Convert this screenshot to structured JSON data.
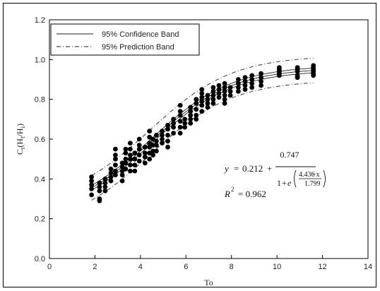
{
  "chart_data": {
    "type": "scatter",
    "xlabel": "To",
    "ylabel_main": "C",
    "ylabel_sub": "t",
    "ylabel_paren": "(H",
    "ylabel_paren_sub": "t",
    "ylabel_slash": "/H",
    "ylabel_slash_sub": "i",
    "ylabel_close": ")",
    "xlim": [
      0,
      14
    ],
    "ylim": [
      0.0,
      1.2
    ],
    "xticks": [
      "0",
      "2",
      "4",
      "6",
      "8",
      "10",
      "12",
      "14"
    ],
    "yticks": [
      "0.0",
      "0.2",
      "0.4",
      "0.6",
      "0.8",
      "1.0",
      "1.2"
    ],
    "legend": {
      "position": "top-left",
      "entries": [
        "95% Confidence Band",
        "95% Prediction Band"
      ]
    },
    "equation": {
      "lhs": "y",
      "a": "0.212",
      "b": "0.747",
      "c": "4.436",
      "d": "1.799",
      "one": "1",
      "e": "e",
      "minus_x": "−x",
      "plus": "+",
      "eq": "="
    },
    "r2": {
      "label": "R",
      "exp": "2",
      "value": "= 0.962"
    },
    "model": {
      "a": 0.212,
      "b": 0.747,
      "c": 4.436,
      "d": 1.799
    },
    "confidence_halfwidth": 0.012,
    "prediction_halfwidth": 0.062,
    "points": [
      [
        1.85,
        0.41
      ],
      [
        1.85,
        0.39
      ],
      [
        1.85,
        0.37
      ],
      [
        1.85,
        0.35
      ],
      [
        1.85,
        0.32
      ],
      [
        2.2,
        0.38
      ],
      [
        2.2,
        0.36
      ],
      [
        2.2,
        0.34
      ],
      [
        2.2,
        0.3
      ],
      [
        2.2,
        0.29
      ],
      [
        2.45,
        0.4
      ],
      [
        2.45,
        0.38
      ],
      [
        2.45,
        0.36
      ],
      [
        2.45,
        0.34
      ],
      [
        2.7,
        0.45
      ],
      [
        2.7,
        0.43
      ],
      [
        2.7,
        0.41
      ],
      [
        2.7,
        0.39
      ],
      [
        2.9,
        0.55
      ],
      [
        2.9,
        0.52
      ],
      [
        2.9,
        0.5
      ],
      [
        2.9,
        0.47
      ],
      [
        2.9,
        0.44
      ],
      [
        2.9,
        0.42
      ],
      [
        3.2,
        0.48
      ],
      [
        3.2,
        0.46
      ],
      [
        3.2,
        0.44
      ],
      [
        3.2,
        0.42
      ],
      [
        3.2,
        0.39
      ],
      [
        3.35,
        0.55
      ],
      [
        3.35,
        0.53
      ],
      [
        3.35,
        0.5
      ],
      [
        3.35,
        0.48
      ],
      [
        3.35,
        0.45
      ],
      [
        3.55,
        0.58
      ],
      [
        3.55,
        0.55
      ],
      [
        3.55,
        0.52
      ],
      [
        3.55,
        0.5
      ],
      [
        3.55,
        0.47
      ],
      [
        3.55,
        0.44
      ],
      [
        3.75,
        0.53
      ],
      [
        3.75,
        0.5
      ],
      [
        3.75,
        0.47
      ],
      [
        3.75,
        0.44
      ],
      [
        3.95,
        0.6
      ],
      [
        3.95,
        0.57
      ],
      [
        3.95,
        0.55
      ],
      [
        3.95,
        0.52
      ],
      [
        3.95,
        0.49
      ],
      [
        4.2,
        0.56
      ],
      [
        4.2,
        0.53
      ],
      [
        4.2,
        0.51
      ],
      [
        4.2,
        0.48
      ],
      [
        4.4,
        0.64
      ],
      [
        4.4,
        0.61
      ],
      [
        4.4,
        0.58
      ],
      [
        4.4,
        0.56
      ],
      [
        4.4,
        0.53
      ],
      [
        4.4,
        0.5
      ],
      [
        4.55,
        0.6
      ],
      [
        4.55,
        0.57
      ],
      [
        4.55,
        0.54
      ],
      [
        4.55,
        0.52
      ],
      [
        4.7,
        0.62
      ],
      [
        4.7,
        0.59
      ],
      [
        4.7,
        0.57
      ],
      [
        4.7,
        0.54
      ],
      [
        4.95,
        0.64
      ],
      [
        4.95,
        0.62
      ],
      [
        4.95,
        0.6
      ],
      [
        4.95,
        0.58
      ],
      [
        5.2,
        0.67
      ],
      [
        5.2,
        0.65
      ],
      [
        5.2,
        0.62
      ],
      [
        5.2,
        0.59
      ],
      [
        5.2,
        0.56
      ],
      [
        5.45,
        0.7
      ],
      [
        5.45,
        0.68
      ],
      [
        5.45,
        0.66
      ],
      [
        5.45,
        0.63
      ],
      [
        5.75,
        0.77
      ],
      [
        5.75,
        0.74
      ],
      [
        5.75,
        0.72
      ],
      [
        5.75,
        0.69
      ],
      [
        5.75,
        0.66
      ],
      [
        5.75,
        0.63
      ],
      [
        5.95,
        0.7
      ],
      [
        5.95,
        0.68
      ],
      [
        5.95,
        0.66
      ],
      [
        6.2,
        0.76
      ],
      [
        6.2,
        0.74
      ],
      [
        6.2,
        0.72
      ],
      [
        6.2,
        0.7
      ],
      [
        6.2,
        0.68
      ],
      [
        6.45,
        0.8
      ],
      [
        6.45,
        0.78
      ],
      [
        6.45,
        0.75
      ],
      [
        6.45,
        0.72
      ],
      [
        6.45,
        0.7
      ],
      [
        6.7,
        0.85
      ],
      [
        6.7,
        0.83
      ],
      [
        6.7,
        0.81
      ],
      [
        6.7,
        0.79
      ],
      [
        6.7,
        0.77
      ],
      [
        6.7,
        0.74
      ],
      [
        6.95,
        0.82
      ],
      [
        6.95,
        0.8
      ],
      [
        6.95,
        0.78
      ],
      [
        6.95,
        0.76
      ],
      [
        7.2,
        0.86
      ],
      [
        7.2,
        0.84
      ],
      [
        7.2,
        0.82
      ],
      [
        7.2,
        0.8
      ],
      [
        7.2,
        0.78
      ],
      [
        7.45,
        0.87
      ],
      [
        7.45,
        0.85
      ],
      [
        7.45,
        0.83
      ],
      [
        7.45,
        0.81
      ],
      [
        7.7,
        0.88
      ],
      [
        7.7,
        0.86
      ],
      [
        7.7,
        0.84
      ],
      [
        7.7,
        0.82
      ],
      [
        7.7,
        0.8
      ],
      [
        7.7,
        0.78
      ],
      [
        7.95,
        0.86
      ],
      [
        7.95,
        0.84
      ],
      [
        7.95,
        0.82
      ],
      [
        8.3,
        0.9
      ],
      [
        8.3,
        0.88
      ],
      [
        8.3,
        0.86
      ],
      [
        8.3,
        0.84
      ],
      [
        8.6,
        0.91
      ],
      [
        8.6,
        0.89
      ],
      [
        8.6,
        0.87
      ],
      [
        8.6,
        0.85
      ],
      [
        8.9,
        0.92
      ],
      [
        8.9,
        0.9
      ],
      [
        8.9,
        0.88
      ],
      [
        8.9,
        0.86
      ],
      [
        9.3,
        0.93
      ],
      [
        9.3,
        0.91
      ],
      [
        9.3,
        0.89
      ],
      [
        9.3,
        0.87
      ],
      [
        10.1,
        0.96
      ],
      [
        10.1,
        0.95
      ],
      [
        10.1,
        0.94
      ],
      [
        10.1,
        0.93
      ],
      [
        10.1,
        0.92
      ],
      [
        10.9,
        0.96
      ],
      [
        10.9,
        0.95
      ],
      [
        10.9,
        0.94
      ],
      [
        10.9,
        0.92
      ],
      [
        10.9,
        0.91
      ],
      [
        11.6,
        0.97
      ],
      [
        11.6,
        0.96
      ],
      [
        11.6,
        0.95
      ],
      [
        11.6,
        0.94
      ],
      [
        11.6,
        0.93
      ],
      [
        11.6,
        0.92
      ]
    ]
  }
}
